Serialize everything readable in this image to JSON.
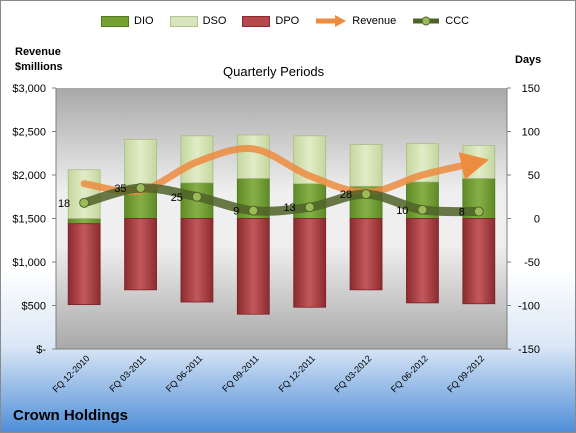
{
  "chart_data": {
    "type": "bar",
    "title": "Quarterly Periods",
    "left_axis_title_line1": "Revenue",
    "left_axis_title_line2": "$millions",
    "right_axis_title": "Days",
    "categories": [
      "FQ 12-2010",
      "FQ 03-2011",
      "FQ 06-2011",
      "FQ 09-2011",
      "FQ 12-2011",
      "FQ 03-2012",
      "FQ 06-2012",
      "FQ 09-2012"
    ],
    "left_axis": {
      "min": 0,
      "max": 3000,
      "step": 500,
      "tick_labels": [
        "$-",
        "$500",
        "$1,000",
        "$1,500",
        "$2,000",
        "$2,500",
        "$3,000"
      ]
    },
    "right_axis": {
      "min": -150,
      "max": 150,
      "step": 50,
      "tick_labels": [
        "-150",
        "-100",
        "-50",
        "0",
        "50",
        "100",
        "150"
      ]
    },
    "series": [
      {
        "name": "DIO",
        "axis": "right",
        "kind": "stacked-bar",
        "color": "#77a033",
        "values": [
          -6,
          37,
          41,
          46,
          40,
          37,
          42,
          46
        ]
      },
      {
        "name": "DSO",
        "axis": "right",
        "kind": "stacked-bar",
        "color": "#d7e4bd",
        "values": [
          56,
          54,
          54,
          50,
          55,
          48,
          44,
          38
        ]
      },
      {
        "name": "DPO",
        "axis": "right",
        "kind": "stacked-bar",
        "color": "#b8474b",
        "values": [
          -93,
          -82,
          -96,
          -110,
          -102,
          -82,
          -97,
          -98
        ]
      },
      {
        "name": "Revenue",
        "axis": "left",
        "kind": "line",
        "color": "#ed8b3f",
        "values": [
          1900,
          1820,
          2150,
          2300,
          1990,
          1800,
          2000,
          2150
        ]
      },
      {
        "name": "CCC",
        "axis": "right",
        "kind": "line",
        "color": "#4f6228",
        "values": [
          18,
          35,
          25,
          9,
          13,
          28,
          10,
          8
        ],
        "data_labels": [
          "18",
          "35",
          "25",
          "9",
          "13",
          "28",
          "10",
          "8"
        ]
      }
    ],
    "legend_position": "top",
    "grid": false
  },
  "company_name": "Crown Holdings"
}
